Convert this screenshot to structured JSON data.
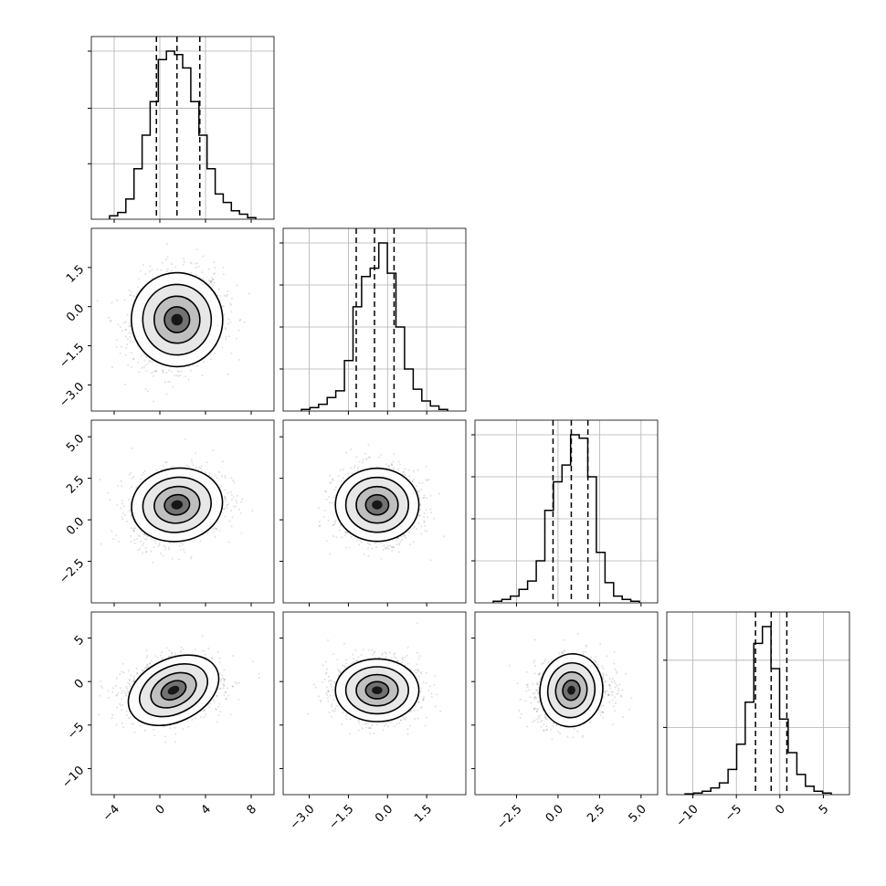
{
  "chart_data": {
    "type": "corner",
    "grid": true,
    "variables": [
      {
        "range": [
          -6,
          10
        ],
        "ticks": [
          -4,
          0,
          4,
          8
        ],
        "tick_labels": [
          "−4",
          "0",
          "4",
          "8"
        ],
        "quantiles": [
          -0.3,
          1.5,
          3.5
        ],
        "hist": [
          0.02,
          0.04,
          0.12,
          0.3,
          0.5,
          0.7,
          0.95,
          1.0,
          0.98,
          0.9,
          0.7,
          0.5,
          0.3,
          0.15,
          0.1,
          0.05,
          0.03,
          0.01
        ],
        "hist_ticks": [
          0.33,
          0.66,
          1.0
        ]
      },
      {
        "range": [
          -4,
          3
        ],
        "ticks": [
          -3.0,
          -1.5,
          0.0,
          1.5
        ],
        "tick_labels": [
          "−3.0",
          "−1.5",
          "0.0",
          "1.5"
        ],
        "quantiles": [
          -1.2,
          -0.5,
          0.25
        ],
        "hist": [
          0.01,
          0.02,
          0.04,
          0.08,
          0.12,
          0.3,
          0.62,
          0.8,
          0.85,
          1.0,
          0.82,
          0.5,
          0.25,
          0.13,
          0.06,
          0.03,
          0.01
        ],
        "hist_ticks": [
          0.25,
          0.5,
          0.75,
          1.0
        ]
      },
      {
        "range": [
          -5,
          6
        ],
        "ticks": [
          -2.5,
          0.0,
          2.5,
          5.0
        ],
        "tick_labels": [
          "−2.5",
          "0.0",
          "2.5",
          "5.0"
        ],
        "quantiles": [
          -0.3,
          0.8,
          1.8
        ],
        "hist": [
          0.01,
          0.02,
          0.04,
          0.08,
          0.13,
          0.25,
          0.55,
          0.72,
          0.82,
          1.0,
          0.98,
          0.75,
          0.3,
          0.12,
          0.04,
          0.02,
          0.01
        ],
        "hist_ticks": [
          0.25,
          0.5,
          0.75,
          1.0
        ]
      },
      {
        "range": [
          -13,
          8
        ],
        "ticks": [
          -10,
          -5,
          0,
          5
        ],
        "tick_labels": [
          "−10",
          "−5",
          "0",
          "5"
        ],
        "quantiles": [
          -2.8,
          -1.0,
          0.8
        ],
        "hist": [
          0.005,
          0.01,
          0.02,
          0.04,
          0.07,
          0.15,
          0.3,
          0.55,
          0.9,
          1.0,
          0.75,
          0.45,
          0.25,
          0.12,
          0.05,
          0.02,
          0.01
        ],
        "hist_ticks": [
          0.4,
          0.8
        ]
      }
    ],
    "pairs": [
      {
        "row": 1,
        "col": 0,
        "center": [
          1.5,
          -0.5
        ],
        "sigma": [
          2.0,
          0.9
        ],
        "rho": 0.1
      },
      {
        "row": 2,
        "col": 0,
        "center": [
          1.5,
          0.9
        ],
        "sigma": [
          2.0,
          1.1
        ],
        "rho": 0.2
      },
      {
        "row": 2,
        "col": 1,
        "center": [
          -0.4,
          0.9
        ],
        "sigma": [
          0.8,
          1.1
        ],
        "rho": 0.0
      },
      {
        "row": 3,
        "col": 0,
        "center": [
          1.2,
          -1.0
        ],
        "sigma": [
          2.1,
          1.8
        ],
        "rho": 0.2
      },
      {
        "row": 3,
        "col": 1,
        "center": [
          -0.4,
          -1.0
        ],
        "sigma": [
          0.8,
          1.8
        ],
        "rho": 0.0
      },
      {
        "row": 3,
        "col": 2,
        "center": [
          0.8,
          -1.0
        ],
        "sigma": [
          1.1,
          1.8
        ],
        "rho": 0.15
      }
    ]
  }
}
